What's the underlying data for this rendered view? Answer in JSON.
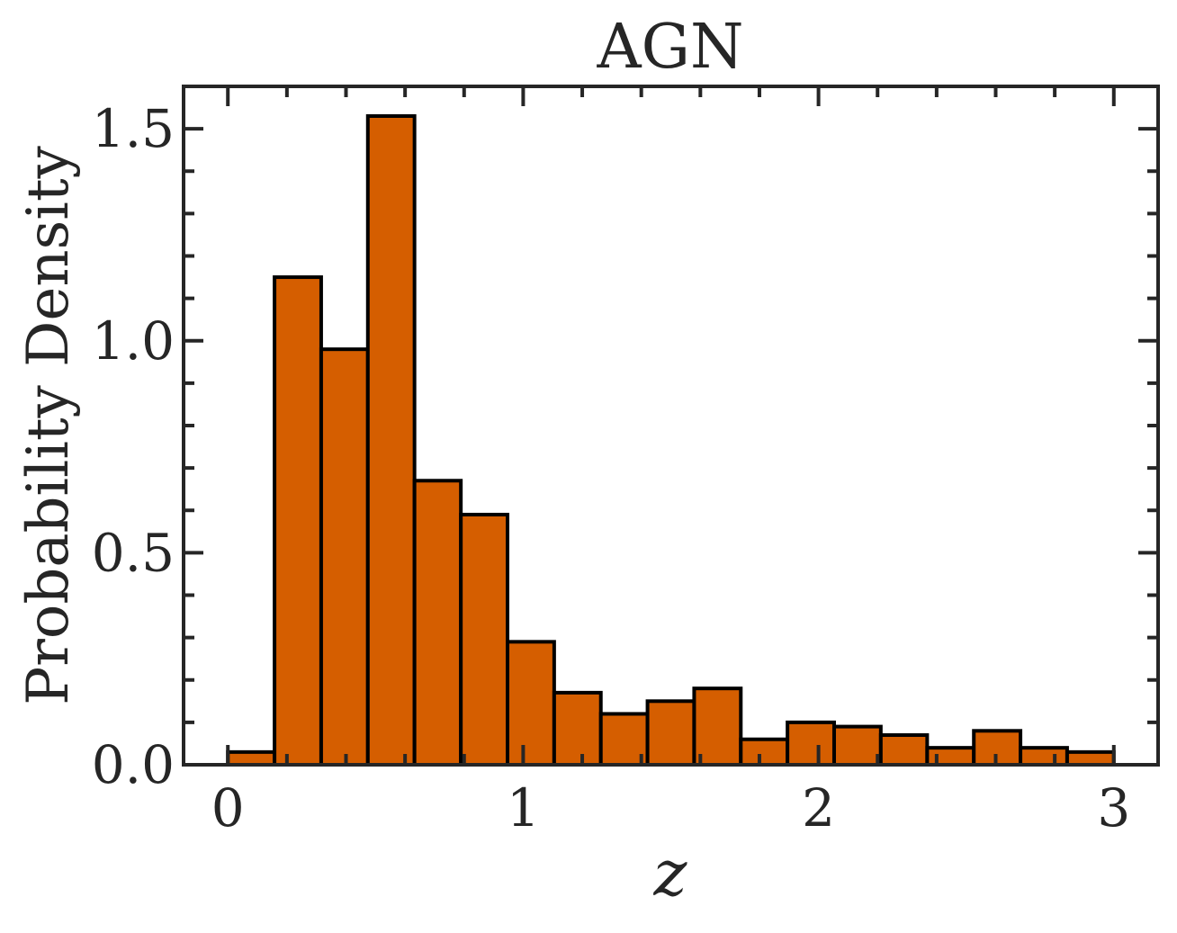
{
  "chart_data": {
    "type": "bar",
    "title": "AGN",
    "xlabel": "z",
    "ylabel": "Probability Density",
    "xlim": [
      -0.15,
      3.15
    ],
    "ylim": [
      0.0,
      1.6
    ],
    "x_ticks": [
      0,
      1,
      2,
      3
    ],
    "x_tick_labels": [
      "0",
      "1",
      "2",
      "3"
    ],
    "y_ticks": [
      0.0,
      0.5,
      1.0,
      1.5
    ],
    "y_tick_labels": [
      "0.0",
      "0.5",
      "1.0",
      "1.5"
    ],
    "y_minor_step": 0.1,
    "x_minor_step": 0.2,
    "grid": false,
    "legend": "none",
    "bar_color": "#d55e00",
    "edge_color": "#000000",
    "bin_edges": [
      0.0,
      0.158,
      0.316,
      0.474,
      0.632,
      0.789,
      0.947,
      1.105,
      1.263,
      1.421,
      1.579,
      1.737,
      1.895,
      2.053,
      2.211,
      2.368,
      2.526,
      2.684,
      2.842,
      3.0
    ],
    "values": [
      0.03,
      1.15,
      0.98,
      1.53,
      0.67,
      0.59,
      0.29,
      0.17,
      0.12,
      0.15,
      0.18,
      0.06,
      0.1,
      0.09,
      0.07,
      0.04,
      0.08,
      0.04,
      0.03
    ]
  }
}
